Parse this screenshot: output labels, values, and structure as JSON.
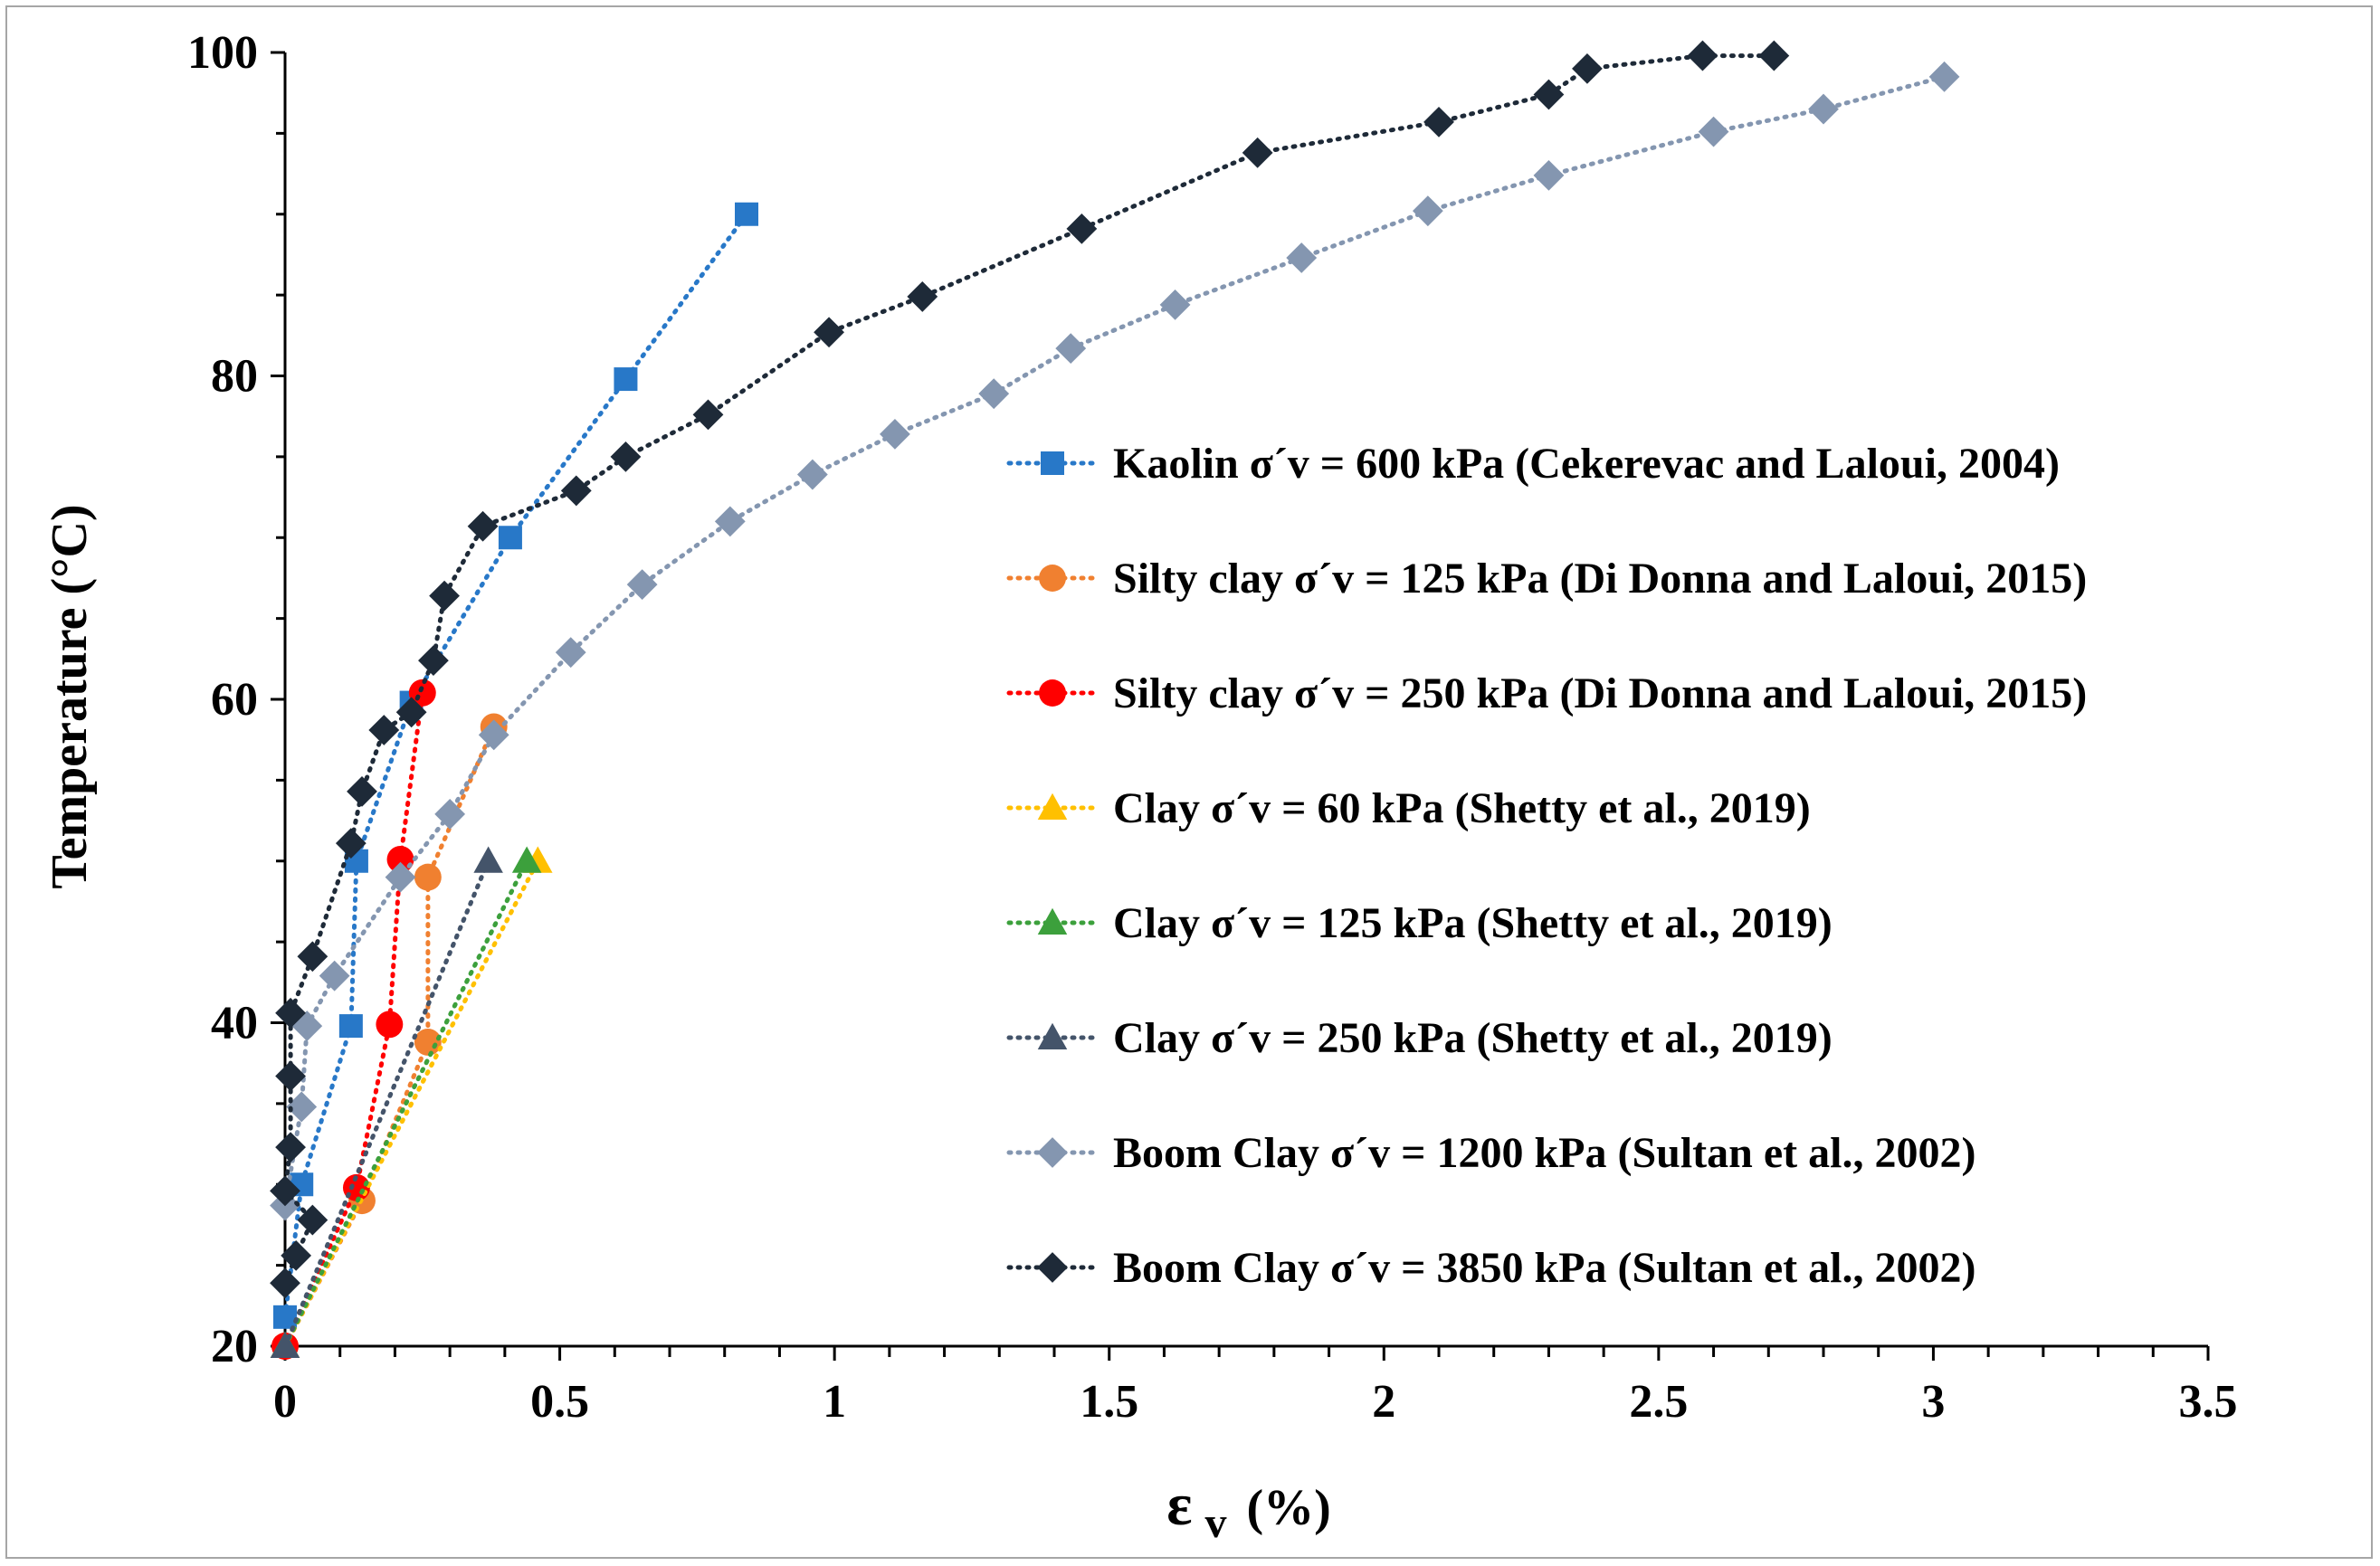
{
  "chart_data": {
    "type": "scatter",
    "xlabel": "ε",
    "xlabel_subscript": "v",
    "xlabel_suffix": "(%)",
    "ylabel": "Temperature (°C)",
    "xlim": [
      0,
      3.5
    ],
    "ylim": [
      20,
      100
    ],
    "x_ticks": [
      "0",
      "0.5",
      "1",
      "1.5",
      "2",
      "2.5",
      "3",
      "3.5"
    ],
    "y_ticks": [
      "20",
      "40",
      "60",
      "80",
      "100"
    ],
    "grid": false,
    "legend_position": "right-center",
    "series": [
      {
        "name": "Kaolin  σ´v = 600 kPa (Cekerevac and Laloui, 2004)",
        "color": "#2878c8",
        "marker": "square",
        "x": [
          0.0,
          0.03,
          0.12,
          0.13,
          0.23,
          0.41,
          0.62,
          0.84
        ],
        "y": [
          21.8,
          30.0,
          39.8,
          50.0,
          59.8,
          70.0,
          79.8,
          90.0
        ]
      },
      {
        "name": "Silty clay  σ´v = 125 kPa (Di Donna and Laloui, 2015)",
        "color": "#f08030",
        "marker": "circle",
        "x": [
          0.0,
          0.14,
          0.26,
          0.26,
          0.38
        ],
        "y": [
          20.0,
          29.0,
          38.8,
          49.0,
          58.3
        ]
      },
      {
        "name": "Silty clay  σ´v = 250 kPa (Di Donna and Laloui, 2015)",
        "color": "#ff0000",
        "marker": "circle",
        "x": [
          0.0,
          0.13,
          0.19,
          0.21,
          0.25
        ],
        "y": [
          20.0,
          29.8,
          39.9,
          50.1,
          60.4
        ]
      },
      {
        "name": "Clay  σ´v = 60 kPa (Shetty et al., 2019)",
        "color": "#ffc000",
        "marker": "triangle",
        "x": [
          0.0,
          0.46
        ],
        "y": [
          20.0,
          50.0
        ]
      },
      {
        "name": "Clay  σ´v = 125 kPa (Shetty et al., 2019)",
        "color": "#3ca03c",
        "marker": "triangle",
        "x": [
          0.0,
          0.44
        ],
        "y": [
          20.0,
          50.0
        ]
      },
      {
        "name": "Clay  σ´v = 250 kPa (Shetty et al., 2019)",
        "color": "#44546a",
        "marker": "triangle",
        "x": [
          0.0,
          0.37
        ],
        "y": [
          20.0,
          50.0
        ]
      },
      {
        "name": "Boom Clay  σ´v = 1200 kPa (Sultan et al., 2002)",
        "color": "#8496b0",
        "marker": "diamond",
        "x": [
          0.0,
          0.03,
          0.04,
          0.09,
          0.21,
          0.3,
          0.38,
          0.52,
          0.65,
          0.81,
          0.96,
          1.11,
          1.29,
          1.43,
          1.62,
          1.85,
          2.08,
          2.3,
          2.6,
          2.8,
          3.02
        ],
        "y": [
          28.7,
          34.8,
          39.8,
          42.9,
          49.0,
          52.9,
          57.8,
          62.9,
          67.1,
          71.0,
          73.9,
          76.4,
          78.9,
          81.7,
          84.4,
          87.3,
          90.2,
          92.4,
          95.1,
          96.5,
          98.5
        ]
      },
      {
        "name": "Boom Clay  σ´v = 3850 kPa (Sultan et al., 2002)",
        "color": "#1e2a38",
        "marker": "diamond",
        "x": [
          0.0,
          0.02,
          0.05,
          0.0,
          0.01,
          0.01,
          0.01,
          0.05,
          0.12,
          0.14,
          0.18,
          0.23,
          0.27,
          0.29,
          0.36,
          0.53,
          0.62,
          0.77,
          0.99,
          1.16,
          1.45,
          1.77,
          2.1,
          2.3,
          2.37,
          2.58,
          2.71
        ],
        "y": [
          23.9,
          25.6,
          27.8,
          29.6,
          32.3,
          36.7,
          40.6,
          44.1,
          51.1,
          54.3,
          58.1,
          59.2,
          62.4,
          66.4,
          70.7,
          72.9,
          75.0,
          77.6,
          82.7,
          84.9,
          89.1,
          93.8,
          95.7,
          97.4,
          99.0,
          99.8,
          99.8
        ]
      }
    ]
  }
}
